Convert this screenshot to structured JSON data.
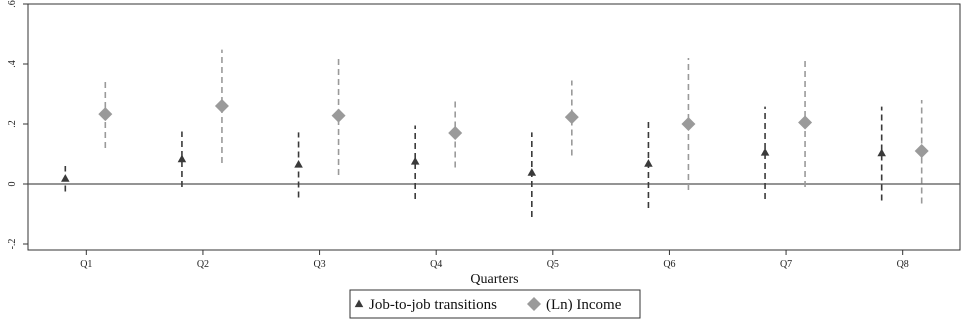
{
  "chart_data": {
    "type": "scatter",
    "title": "",
    "xlabel": "Quarters",
    "ylabel": "",
    "categories": [
      "Q1",
      "Q2",
      "Q3",
      "Q4",
      "Q5",
      "Q6",
      "Q7",
      "Q8"
    ],
    "ylim": [
      -0.22,
      0.6
    ],
    "yticks": [
      -0.2,
      0,
      0.2,
      0.4,
      0.6
    ],
    "ytick_labels": [
      "-.2",
      "0",
      ".2",
      ".4",
      ".6"
    ],
    "grid": false,
    "reference_line_y": 0,
    "legend_position": "bottom",
    "series": [
      {
        "name": "Job-to-job transitions",
        "marker": "triangle",
        "color": "#3a3a3a",
        "values": [
          0.018,
          0.083,
          0.065,
          0.075,
          0.038,
          0.068,
          0.105,
          0.103
        ],
        "ci_low": [
          -0.025,
          -0.01,
          -0.045,
          -0.05,
          -0.11,
          -0.08,
          -0.05,
          -0.055
        ],
        "ci_high": [
          0.06,
          0.175,
          0.172,
          0.195,
          0.172,
          0.212,
          0.258,
          0.258
        ]
      },
      {
        "name": "(Ln) Income",
        "marker": "diamond",
        "color": "#9a9a9a",
        "values": [
          0.233,
          0.26,
          0.228,
          0.17,
          0.223,
          0.2,
          0.205,
          0.11
        ],
        "ci_low": [
          0.12,
          0.07,
          0.03,
          0.055,
          0.095,
          -0.02,
          -0.01,
          -0.065
        ],
        "ci_high": [
          0.34,
          0.448,
          0.43,
          0.28,
          0.345,
          0.42,
          0.42,
          0.28
        ]
      }
    ]
  }
}
